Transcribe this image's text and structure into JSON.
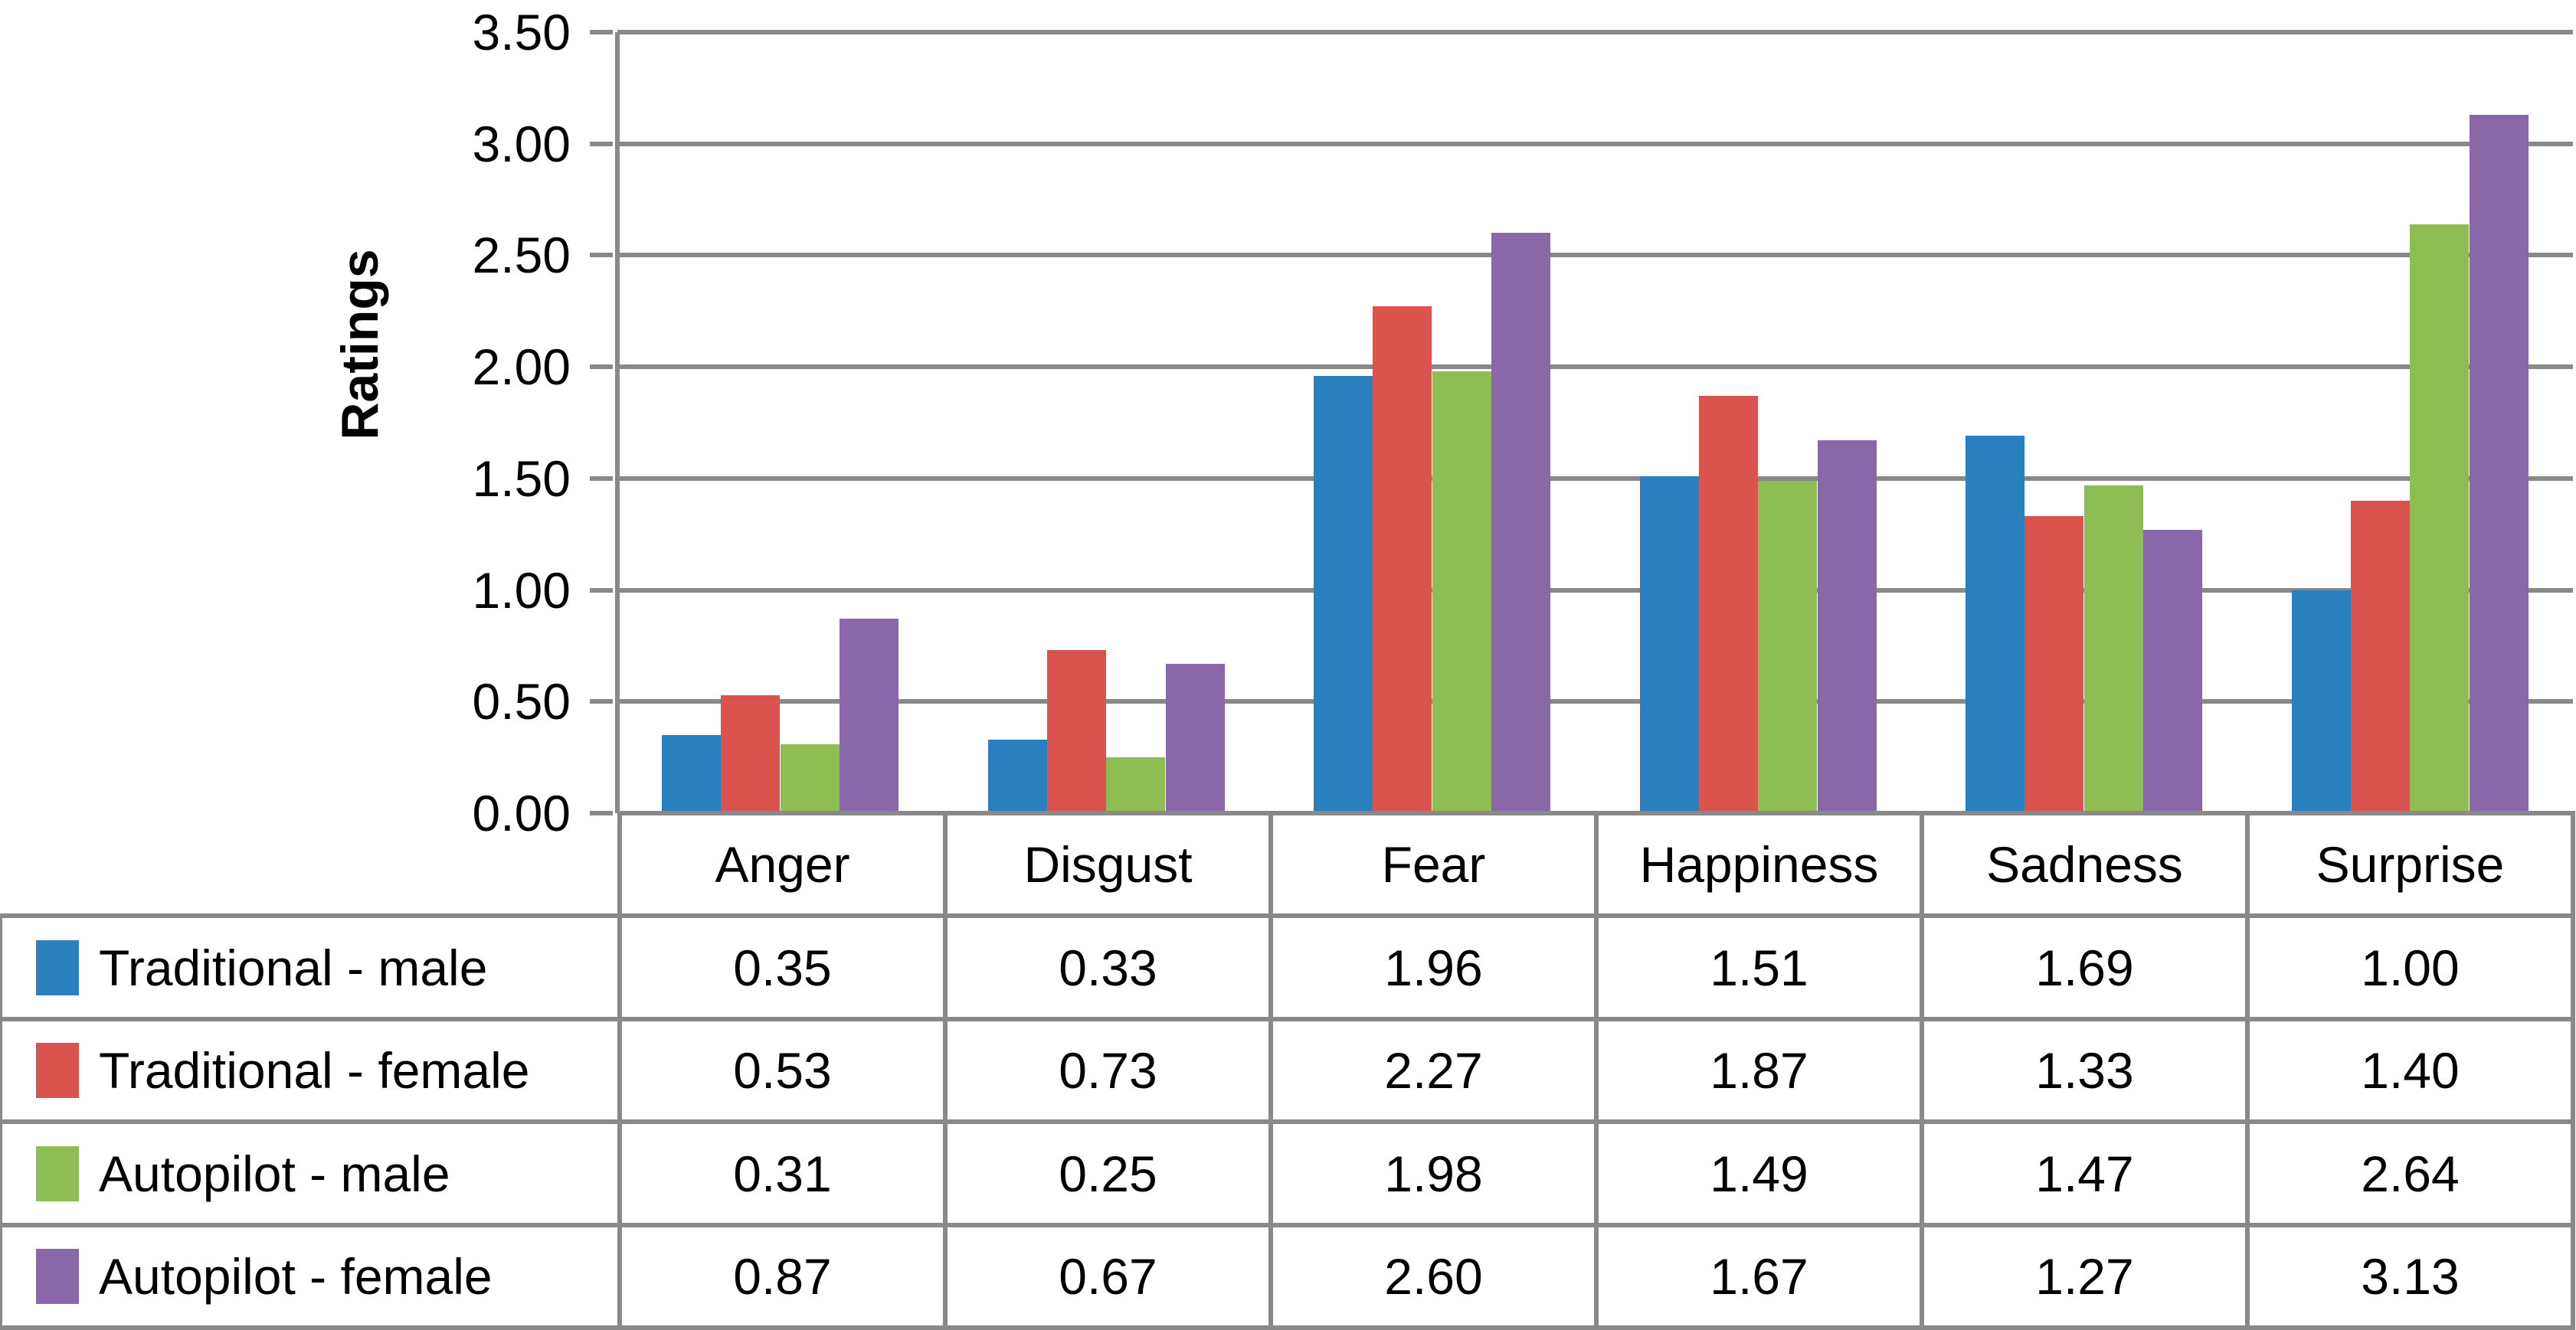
{
  "chart_data": {
    "type": "bar",
    "title": "",
    "ylabel": "Ratings",
    "categories": [
      "Anger",
      "Disgust",
      "Fear",
      "Happiness",
      "Sadness",
      "Surprise"
    ],
    "series": [
      {
        "name": "Traditional - male",
        "color": "#2A7FBF",
        "values": [
          0.35,
          0.33,
          1.96,
          1.51,
          1.69,
          1.0
        ],
        "display_values": [
          "0.35",
          "0.33",
          "1.96",
          "1.51",
          "1.69",
          "1.00"
        ]
      },
      {
        "name": "Traditional - female",
        "color": "#DB534F",
        "values": [
          0.53,
          0.73,
          2.27,
          1.87,
          1.33,
          1.4
        ],
        "display_values": [
          "0.53",
          "0.73",
          "2.27",
          "1.87",
          "1.33",
          "1.40"
        ]
      },
      {
        "name": "Autopilot - male",
        "color": "#8DBD53",
        "values": [
          0.31,
          0.25,
          1.98,
          1.49,
          1.47,
          2.64
        ],
        "display_values": [
          "0.31",
          "0.25",
          "1.98",
          "1.49",
          "1.47",
          "2.64"
        ]
      },
      {
        "name": "Autopilot - female",
        "color": "#8A67A9",
        "values": [
          0.87,
          0.67,
          2.6,
          1.67,
          1.27,
          3.13
        ],
        "display_values": [
          "0.87",
          "0.67",
          "2.60",
          "1.67",
          "1.27",
          "3.13"
        ]
      }
    ],
    "ylim": [
      0,
      3.5
    ],
    "ytick_step": 0.5,
    "ytick_labels": [
      "0.00",
      "0.50",
      "1.00",
      "1.50",
      "2.00",
      "2.50",
      "3.00",
      "3.50"
    ],
    "grid": true,
    "gridline_color": "#898989",
    "text_color": "#000000",
    "background_color": "#FFFFFF",
    "legend_position": "table-rows-left",
    "table_below_chart": true
  }
}
